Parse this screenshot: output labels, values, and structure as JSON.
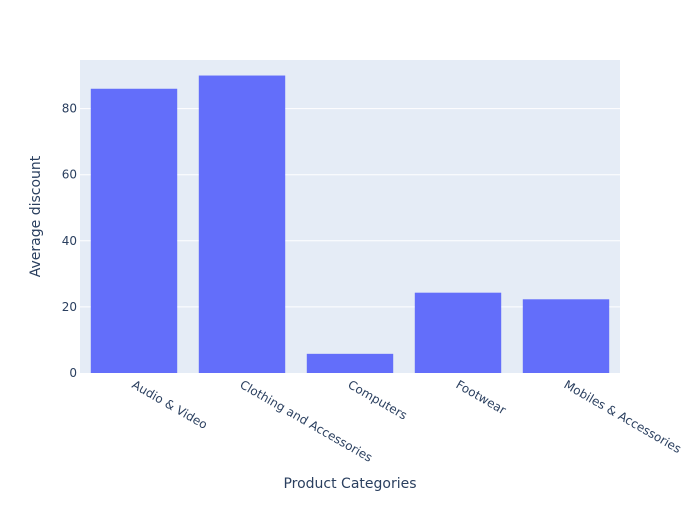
{
  "chart_data": {
    "type": "bar",
    "title": "",
    "xlabel": "Product Categories",
    "ylabel": "Average discount",
    "categories": [
      "Audio & Video",
      "Clothing and Accessories",
      "Computers",
      "Footwear",
      "Mobiles & Accessories"
    ],
    "values": [
      86,
      90,
      5.8,
      24.3,
      22.3
    ],
    "ylim": [
      0,
      94.7
    ],
    "yticks": [
      0,
      20,
      40,
      60,
      80
    ],
    "grid": true,
    "legend": "none",
    "colors": {
      "bar": "#636efa",
      "plot_background": "#e5ecf6",
      "gridline": "#ffffff",
      "text": "#2a3f5f"
    }
  }
}
